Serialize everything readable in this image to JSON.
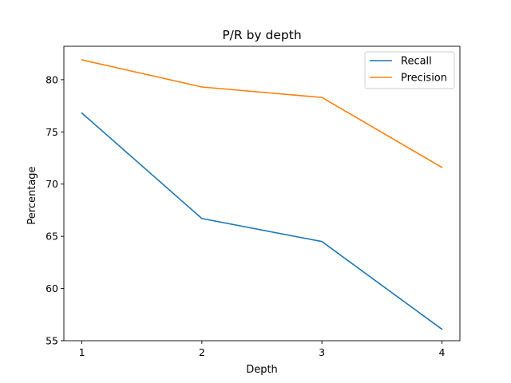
{
  "chart_data": {
    "type": "line",
    "title": "P/R by depth",
    "xlabel": "Depth",
    "ylabel": "Percentage",
    "x": [
      1,
      2,
      3,
      4
    ],
    "x_ticks": [
      "1",
      "2",
      "3",
      "4"
    ],
    "y_ticks": [
      "55",
      "60",
      "65",
      "70",
      "75",
      "80"
    ],
    "xlim": [
      0.85,
      4.15
    ],
    "ylim": [
      55.0,
      83.2
    ],
    "grid": false,
    "legend_position": "top-right",
    "series": [
      {
        "name": "Recall",
        "color": "#1f77b4",
        "values": [
          76.8,
          66.7,
          64.5,
          56.1
        ]
      },
      {
        "name": "Precision",
        "color": "#ff7f0e",
        "values": [
          81.9,
          79.3,
          78.3,
          71.6
        ]
      }
    ]
  }
}
